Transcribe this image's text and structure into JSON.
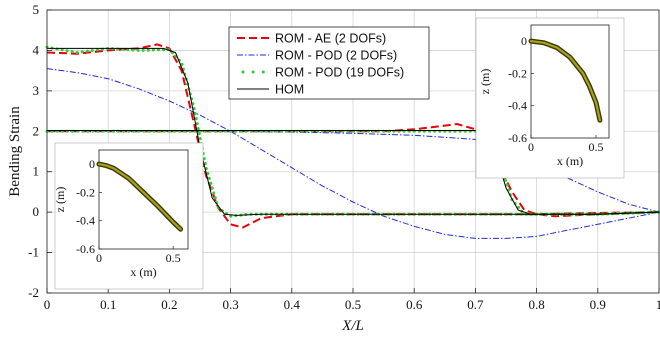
{
  "chart_data": [
    {
      "type": "line",
      "xlabel": "X/L",
      "ylabel": "Bending Strain",
      "xlim": [
        0,
        1
      ],
      "ylim": [
        -2,
        5
      ],
      "xticks": [
        0,
        0.1,
        0.2,
        0.3,
        0.4,
        0.5,
        0.6,
        0.7,
        0.8,
        0.9,
        1
      ],
      "xtick_labels": [
        "0",
        "0.1",
        "0.2",
        "0.3",
        "0.4",
        "0.5",
        "0.6",
        "0.7",
        "0.8",
        "0.9",
        "1"
      ],
      "yticks": [
        -2,
        -1,
        0,
        1,
        2,
        3,
        4,
        5
      ],
      "ytick_labels": [
        "-2",
        "-1",
        "0",
        "1",
        "2",
        "3",
        "4",
        "5"
      ],
      "grid": true,
      "legend_position": "top-center",
      "series": [
        {
          "name": "ROM - AE (2 DOFs)",
          "color": "#e8000b",
          "style": "dashed",
          "curves": [
            {
              "x": [
                0,
                0.05,
                0.1,
                0.15,
                0.18,
                0.2,
                0.22,
                0.24,
                0.26,
                0.28,
                0.3,
                0.32,
                0.35,
                0.4,
                0.5,
                0.6,
                0.7,
                0.8,
                0.9,
                1.0
              ],
              "y": [
                3.95,
                3.92,
                4.0,
                4.05,
                4.15,
                4.05,
                3.5,
                2.2,
                0.9,
                0.1,
                -0.3,
                -0.38,
                -0.15,
                -0.05,
                -0.05,
                -0.05,
                -0.05,
                -0.05,
                -0.02,
                0.0
              ]
            },
            {
              "x": [
                0,
                0.1,
                0.2,
                0.3,
                0.4,
                0.5,
                0.55,
                0.6,
                0.64,
                0.67,
                0.7,
                0.72,
                0.74,
                0.76,
                0.78,
                0.8,
                0.83,
                0.9,
                1.0
              ],
              "y": [
                2.0,
                2.0,
                2.0,
                2.0,
                2.0,
                2.0,
                2.0,
                2.05,
                2.12,
                2.18,
                2.05,
                1.7,
                1.1,
                0.5,
                0.05,
                -0.05,
                -0.1,
                -0.05,
                0.0
              ]
            }
          ]
        },
        {
          "name": "ROM - POD (2 DOFs)",
          "color": "#1f2bd6",
          "style": "dashdot",
          "curves": [
            {
              "x": [
                0,
                0.05,
                0.1,
                0.15,
                0.2,
                0.25,
                0.3,
                0.35,
                0.4,
                0.45,
                0.5,
                0.55,
                0.6,
                0.65,
                0.7,
                0.75,
                0.8,
                0.85,
                0.9,
                0.95,
                1.0
              ],
              "y": [
                3.55,
                3.45,
                3.3,
                3.05,
                2.75,
                2.4,
                2.0,
                1.55,
                1.1,
                0.65,
                0.25,
                -0.1,
                -0.35,
                -0.55,
                -0.65,
                -0.65,
                -0.6,
                -0.45,
                -0.3,
                -0.15,
                0.0
              ]
            },
            {
              "x": [
                0,
                0.1,
                0.2,
                0.3,
                0.4,
                0.5,
                0.6,
                0.7,
                0.75,
                0.8,
                0.85,
                0.9,
                0.95,
                1.0
              ],
              "y": [
                2.0,
                2.0,
                2.0,
                2.0,
                1.98,
                1.95,
                1.9,
                1.8,
                1.6,
                1.25,
                0.85,
                0.5,
                0.2,
                0.0
              ]
            }
          ]
        },
        {
          "name": "ROM - POD (19 DOFs)",
          "color": "#33cc33",
          "style": "dotted",
          "curves": [
            {
              "x": [
                0,
                0.05,
                0.1,
                0.15,
                0.2,
                0.22,
                0.24,
                0.26,
                0.28,
                0.3,
                0.33,
                0.4,
                0.5,
                0.6,
                0.7,
                0.8,
                0.9,
                1.0
              ],
              "y": [
                4.08,
                3.95,
                4.05,
                4.0,
                4.02,
                3.7,
                2.6,
                1.1,
                0.1,
                -0.1,
                -0.05,
                -0.05,
                -0.05,
                -0.05,
                -0.05,
                -0.05,
                -0.05,
                0.0
              ]
            },
            {
              "x": [
                0,
                0.1,
                0.2,
                0.3,
                0.4,
                0.5,
                0.6,
                0.7,
                0.72,
                0.74,
                0.76,
                0.78,
                0.8,
                0.9,
                1.0
              ],
              "y": [
                2.0,
                2.0,
                2.0,
                2.0,
                2.0,
                2.0,
                2.0,
                2.0,
                1.9,
                1.2,
                0.3,
                -0.05,
                -0.05,
                -0.05,
                0.0
              ]
            }
          ]
        },
        {
          "name": "HOM",
          "color": "#000000",
          "style": "solid",
          "curves": [
            {
              "x": [
                0,
                0.05,
                0.1,
                0.15,
                0.19,
                0.21,
                0.23,
                0.25,
                0.27,
                0.29,
                0.31,
                0.35,
                0.4,
                0.5,
                0.6,
                0.7,
                0.8,
                0.9,
                1.0
              ],
              "y": [
                4.05,
                4.05,
                4.05,
                4.05,
                4.05,
                3.95,
                3.2,
                1.6,
                0.35,
                -0.05,
                -0.08,
                -0.05,
                -0.05,
                -0.05,
                -0.05,
                -0.05,
                -0.05,
                -0.05,
                0.0
              ]
            },
            {
              "x": [
                0,
                0.1,
                0.2,
                0.3,
                0.4,
                0.5,
                0.6,
                0.7,
                0.72,
                0.73,
                0.75,
                0.77,
                0.79,
                0.81,
                0.9,
                1.0
              ],
              "y": [
                2.02,
                2.02,
                2.02,
                2.02,
                2.02,
                2.02,
                2.02,
                2.02,
                1.95,
                1.6,
                0.6,
                0.05,
                -0.05,
                -0.05,
                -0.05,
                0.0
              ]
            }
          ]
        }
      ]
    },
    {
      "type": "line",
      "inset": "top-right",
      "xlabel": "x (m)",
      "ylabel": "z (m)",
      "xlim": [
        0,
        0.6
      ],
      "ylim": [
        -0.6,
        0.1
      ],
      "xticks": [
        0,
        0.5
      ],
      "xtick_labels": [
        "0",
        "0.5"
      ],
      "yticks": [
        0,
        -0.2,
        -0.4,
        -0.6
      ],
      "ytick_labels": [
        "0",
        "-0.2",
        "-0.4",
        "-0.6"
      ],
      "grid": false,
      "series": [
        {
          "x": [
            0,
            0.1,
            0.2,
            0.3,
            0.4,
            0.45,
            0.5,
            0.53
          ],
          "y": [
            0,
            -0.01,
            -0.04,
            -0.1,
            -0.2,
            -0.28,
            -0.38,
            -0.49
          ]
        }
      ]
    },
    {
      "type": "line",
      "inset": "bottom-left",
      "xlabel": "x (m)",
      "ylabel": "z (m)",
      "xlim": [
        0,
        0.6
      ],
      "ylim": [
        -0.6,
        0.1
      ],
      "xticks": [
        0,
        0.5
      ],
      "xtick_labels": [
        "0",
        "0.5"
      ],
      "yticks": [
        0,
        -0.2,
        -0.4,
        -0.6
      ],
      "ytick_labels": [
        "0",
        "-0.2",
        "-0.4",
        "-0.6"
      ],
      "grid": false,
      "series": [
        {
          "x": [
            0,
            0.05,
            0.1,
            0.2,
            0.3,
            0.4,
            0.5,
            0.55
          ],
          "y": [
            0,
            -0.01,
            -0.03,
            -0.1,
            -0.2,
            -0.3,
            -0.41,
            -0.46
          ]
        }
      ]
    }
  ]
}
